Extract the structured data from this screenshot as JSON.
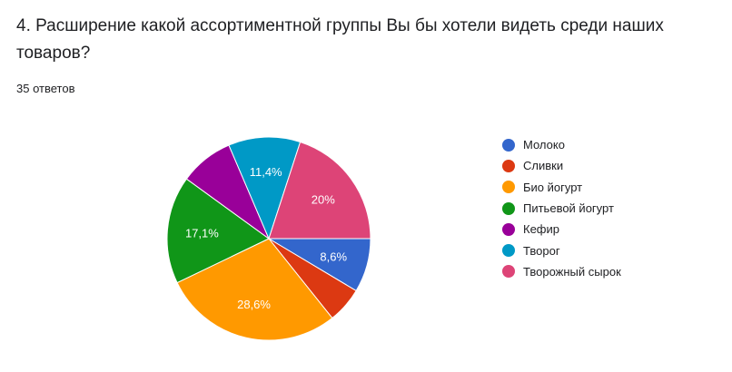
{
  "question": {
    "title": "4. Расширение какой ассортиментной группы Вы бы хотели видеть среди наших товаров?",
    "response_count": "35 ответов"
  },
  "chart_data": {
    "type": "pie",
    "categories": [
      "Молоко",
      "Сливки",
      "Био йогурт",
      "Питьевой йогурт",
      "Кефир",
      "Творог",
      "Творожный сырок"
    ],
    "values": [
      3,
      2,
      10,
      6,
      3,
      4,
      7
    ],
    "percent_labels": [
      "8,6%",
      "",
      "28,6%",
      "17,1%",
      "",
      "11,4%",
      "20%"
    ],
    "colors": [
      "#3366cc",
      "#dc3912",
      "#ff9900",
      "#109618",
      "#990099",
      "#0099c6",
      "#dd4477"
    ],
    "total": 35,
    "legend_position": "right"
  }
}
